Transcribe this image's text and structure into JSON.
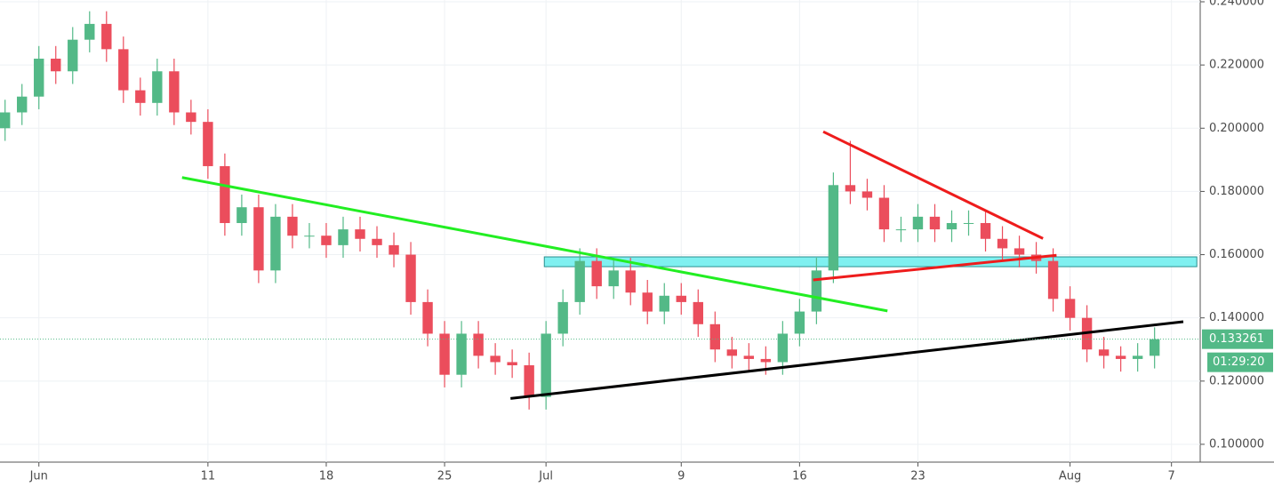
{
  "chart_data": {
    "type": "candlestick",
    "up_color": "#53b987",
    "down_color": "#eb4d5c",
    "grid": true,
    "xlim": [
      -2.3,
      68.7
    ],
    "ylim": [
      0.10055,
      0.24
    ],
    "xticks": [
      {
        "value": 0,
        "label": "Jun"
      },
      {
        "value": 10,
        "label": "11"
      },
      {
        "value": 17,
        "label": "18"
      },
      {
        "value": 24,
        "label": "25"
      },
      {
        "value": 30,
        "label": "Jul"
      },
      {
        "value": 38,
        "label": "9"
      },
      {
        "value": 45,
        "label": "16"
      },
      {
        "value": 52,
        "label": "23"
      },
      {
        "value": 61,
        "label": "Aug"
      },
      {
        "value": 67,
        "label": "7"
      }
    ],
    "yticks": [
      {
        "value": 0.1,
        "label": "0.100000"
      },
      {
        "value": 0.12,
        "label": "0.120000"
      },
      {
        "value": 0.14,
        "label": "0.140000"
      },
      {
        "value": 0.16,
        "label": "0.160000"
      },
      {
        "value": 0.18,
        "label": "0.180000"
      },
      {
        "value": 0.2,
        "label": "0.200000"
      },
      {
        "value": 0.22,
        "label": "0.220000"
      },
      {
        "value": 0.24,
        "label": "0.240000"
      }
    ],
    "x": [
      -2,
      -1,
      0,
      1,
      2,
      3,
      4,
      5,
      6,
      7,
      8,
      9,
      10,
      11,
      12,
      13,
      14,
      15,
      16,
      17,
      18,
      19,
      20,
      21,
      22,
      23,
      24,
      25,
      26,
      27,
      28,
      29,
      30,
      31,
      32,
      33,
      34,
      35,
      36,
      37,
      38,
      39,
      40,
      41,
      42,
      43,
      44,
      45,
      46,
      47,
      48,
      49,
      50,
      51,
      52,
      53,
      54,
      55,
      56,
      57,
      58,
      59,
      60,
      61,
      62,
      63,
      64,
      65,
      66
    ],
    "open": [
      0.2,
      0.205,
      0.21,
      0.222,
      0.218,
      0.228,
      0.233,
      0.225,
      0.212,
      0.208,
      0.218,
      0.205,
      0.202,
      0.188,
      0.17,
      0.175,
      0.155,
      0.172,
      0.166,
      0.166,
      0.163,
      0.168,
      0.165,
      0.163,
      0.16,
      0.145,
      0.135,
      0.122,
      0.135,
      0.128,
      0.126,
      0.125,
      0.115,
      0.135,
      0.145,
      0.158,
      0.15,
      0.155,
      0.148,
      0.142,
      0.147,
      0.145,
      0.138,
      0.13,
      0.128,
      0.127,
      0.126,
      0.135,
      0.142,
      0.155,
      0.182,
      0.18,
      0.178,
      0.168,
      0.168,
      0.172,
      0.168,
      0.17,
      0.17,
      0.165,
      0.162,
      0.16,
      0.158,
      0.146,
      0.14,
      0.13,
      0.128,
      0.127,
      0.128
    ],
    "high": [
      0.209,
      0.214,
      0.226,
      0.226,
      0.232,
      0.237,
      0.237,
      0.229,
      0.216,
      0.222,
      0.222,
      0.209,
      0.206,
      0.192,
      0.179,
      0.179,
      0.176,
      0.176,
      0.17,
      0.17,
      0.172,
      0.172,
      0.169,
      0.167,
      0.164,
      0.149,
      0.139,
      0.139,
      0.139,
      0.132,
      0.13,
      0.129,
      0.139,
      0.149,
      0.162,
      0.162,
      0.159,
      0.159,
      0.152,
      0.151,
      0.151,
      0.149,
      0.142,
      0.134,
      0.132,
      0.131,
      0.139,
      0.146,
      0.159,
      0.186,
      0.196,
      0.184,
      0.182,
      0.172,
      0.176,
      0.176,
      0.174,
      0.174,
      0.174,
      0.169,
      0.166,
      0.164,
      0.162,
      0.15,
      0.144,
      0.134,
      0.131,
      0.132,
      0.137
    ],
    "low": [
      0.196,
      0.201,
      0.206,
      0.214,
      0.214,
      0.224,
      0.221,
      0.208,
      0.204,
      0.204,
      0.201,
      0.198,
      0.184,
      0.166,
      0.166,
      0.151,
      0.151,
      0.162,
      0.162,
      0.159,
      0.159,
      0.161,
      0.159,
      0.156,
      0.141,
      0.131,
      0.118,
      0.118,
      0.124,
      0.122,
      0.121,
      0.111,
      0.111,
      0.131,
      0.141,
      0.146,
      0.146,
      0.144,
      0.138,
      0.138,
      0.141,
      0.134,
      0.126,
      0.124,
      0.123,
      0.122,
      0.122,
      0.131,
      0.138,
      0.151,
      0.176,
      0.174,
      0.164,
      0.164,
      0.164,
      0.164,
      0.164,
      0.166,
      0.161,
      0.158,
      0.156,
      0.154,
      0.142,
      0.136,
      0.126,
      0.124,
      0.123,
      0.123,
      0.124
    ],
    "close": [
      0.205,
      0.21,
      0.222,
      0.218,
      0.228,
      0.233,
      0.225,
      0.212,
      0.208,
      0.218,
      0.205,
      0.202,
      0.188,
      0.17,
      0.175,
      0.155,
      0.172,
      0.166,
      0.166,
      0.163,
      0.168,
      0.165,
      0.163,
      0.16,
      0.145,
      0.135,
      0.122,
      0.135,
      0.128,
      0.126,
      0.125,
      0.115,
      0.135,
      0.145,
      0.158,
      0.15,
      0.155,
      0.148,
      0.142,
      0.147,
      0.145,
      0.138,
      0.13,
      0.128,
      0.127,
      0.126,
      0.135,
      0.142,
      0.155,
      0.182,
      0.18,
      0.178,
      0.168,
      0.168,
      0.172,
      0.168,
      0.17,
      0.17,
      0.165,
      0.162,
      0.16,
      0.158,
      0.146,
      0.14,
      0.13,
      0.128,
      0.127,
      0.128,
      0.133261
    ],
    "last_price": 0.133261,
    "countdown": "01:29:20",
    "zone": {
      "color": "#7ff0f0",
      "x": [
        29.9,
        68.5
      ],
      "y": [
        0.1562,
        0.1593
      ]
    },
    "lines": [
      {
        "color": "#22ee22",
        "x": [
          8.47,
          50.2
        ],
        "y": [
          0.1844,
          0.1422
        ]
      },
      {
        "color": "#ee1c1c",
        "x": [
          46.4,
          59.4
        ],
        "y": [
          0.1989,
          0.1651
        ]
      },
      {
        "color": "#ee1c1c",
        "x": [
          45.8,
          60.2
        ],
        "y": [
          0.152,
          0.1598
        ]
      },
      {
        "color": "#000000",
        "x": [
          27.9,
          67.7
        ],
        "y": [
          0.1145,
          0.1388
        ]
      }
    ]
  }
}
